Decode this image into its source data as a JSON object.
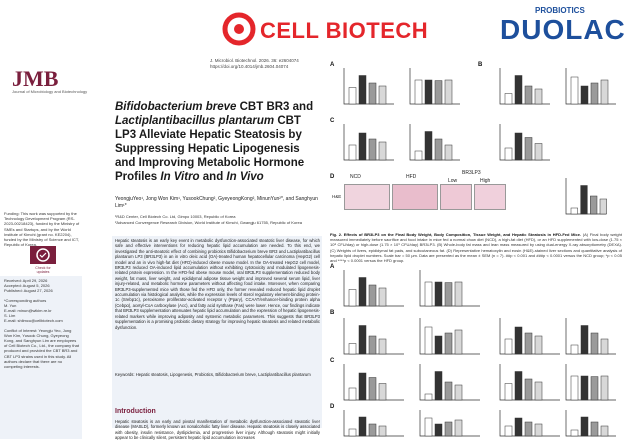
{
  "header": {
    "brand1": "CELL BIOTECH",
    "brand2_super": "PROBIOTICS",
    "brand2": "DUOLAC"
  },
  "journal": {
    "logo": "JMB",
    "logo_sub": "Journal of Microbiology and Biotechnology",
    "citation": "J. Microbiol. Biotechnol. 2026. 36: e2604074",
    "doi": "https://doi.org/10.4014/jmb.2604.04074"
  },
  "article": {
    "title_parts": [
      "Bifidobacterium breve",
      " CBT BR3 and ",
      "Lactiplantibacillus plantarum",
      " CBT LP3 Alleviate Hepatic Steatosis by Suppressing Hepatic Lipogenesis and Improving Metabolic Hormone Profiles ",
      "In Vitro",
      " and ",
      "In Vivo"
    ],
    "authors": "YeongjuYeo¹, Jong Won Kim¹, YusookChung², GyeyeongKong², MinunYun²*, and Sanghyun Lim¹*",
    "affiliation1": "¹R&D Center, Cell Biotech Co. Ltd, Gimpo 10003, Republic of Korea",
    "affiliation2": "²Advanced Convergence Research Division, World Institute of Kimchi, Gwangju 61755, Republic of Korea",
    "abstract": "Hepatic steatosis is an early key event in metabolic dysfunction-associated steatotic liver disease, for which safe and effective interventions for reducing hepatic lipid accumulation are needed. To this end, we investigated the anti-steatotic effect of combining probiotics Bifidobacterium breve BR3 and Lactiplantibacillus plantarum LP3 (BR3LP3) in an in vitro oleic acid (OA)-treated human hepatocellular carcinoma (HepG2) cell model and an in vivo high-fat diet (HFD)-induced obese mouse model. In the OA-treated HepG2 cell model, BR3LP3 reduced OA-induced lipid accumulation without exhibiting cytotoxicity and modulated lipogenesis-related protein expression. In the HFD-fed obese mouse model, oral BR3LP3 supplementation reduced body weight, fat mass, liver weight, and epididymal adipose tissue weight and improved several serum lipid, liver injury-related, and metabolic hormone parameters without affecting food intake. Moreover, when comparing BR3LP3-supplemented mice with those fed the HFD only, the former revealed reduced hepatic lipid droplet accumulation via histological analysis, while the expression levels of sterol regulatory element-binding protein-1c (Srebp1c), peroxisome proliferator-activated receptor γ (Pparγ), CCAAT/enhancer-binding protein alpha (Cebpα), acetyl-CoA carboxylase (Acc), and fatty acid synthase (Fas) were lower. Hence, our findings indicate that BR3LP3 supplementation attenuates hepatic lipid accumulation and the expression of hepatic lipogenesis-related markers while improving adiposity and systemic metabolic parameters. This suggests that BR3LP3 supplementation is a promising probiotic dietary strategy for improving hepatic steatosis and related metabolic dysfunction.",
    "keywords": "Keywords: Hepatic steatosis, Lipogenesis, Probiotics, Bifidobacterium breve, Lactiplantibacillus plantarum",
    "intro_heading": "Introduction",
    "intro_text": "Hepatic steatosis is an early and pivotal manifestation of metabolic dysfunction-associated steatotic liver disease (MASLD), formerly known as nonalcoholic fatty liver disease. Hepatic steatosis is closely associated with obesity, insulin resistance, dyslipidemia, and progressive liver injury. Although steatosis might initially appear to be clinically silent, persistent hepatic lipid accumulation increases"
  },
  "sidebar": {
    "funding": "Funding: This work was supported by the Technology Development Program (RS-2023-00218423), funded by the Ministry of SMEs and Startups, and by the World Institute of Kimchi (grant no. KE2204), funded by the Ministry of Science and ICT, Republic of Korea.",
    "badge_label": "Check for updates",
    "received": "Received: April 29, 2026",
    "accepted": "Accepted: August 5, 2026",
    "published": "Published: August 27, 2026",
    "corr_heading": "*Corresponding authors",
    "corr1": "M. Yun",
    "corr1_email": "E-mail: minun@wikim.re.kr",
    "corr2": "S. Lim",
    "corr2_email": "E-mail: shlimcu@cellbiotech.com",
    "conflict": "Conflict of Interest: Yeongju Yeo, Jong Won Kim, Yusook Chung, Gyeyeong Kong, and Sanghyun Lim are employees of Cell Biotech Co., Ltd., the company that produced and provided the CBT BR3 and CBT LP3 strains used in this study. All authors declare that there are no competing interests."
  },
  "figure": {
    "panels": [
      "A",
      "B",
      "C",
      "D",
      "A",
      "B",
      "C",
      "D"
    ],
    "groups": [
      "NCD",
      "HFD",
      "Low",
      "High"
    ],
    "group_header": "BR3LP3",
    "histo_label": "H&E",
    "caption_title": "Fig. 2. Effects of BR3LP3 on the Final Body Weight, Body Composition, Tissue Weight, and Hepatic Steatosis in HFD-Fed Mice.",
    "caption_body": "(A) Final body weight measured immediately before sacrifice and food intake in mice fed a normal chow diet (NCD), a high-fat diet (HFD), or an HFD supplemented with low-dose (1.75 × 10⁸ CFU/day) or high-dose (1.75 × 10⁹ CFU/day) BR3LP3. (B) Whole-body fat mass and lean mass measured by using dual-energy X-ray absorptiometry (DEXA). (C) Weights of livers, epididymal fat pads, and subcutaneous fat. (D) Representative hematoxylin and eosin (H&E)-stained liver sections and quantitative analysis of hepatic lipid droplet numbers. Scale bar = 50 μm. Data are presented as the mean ± SEM (n = 7). ##p < 0.001 and ###p < 0.0001 versus the NCD group; *p < 0.05 and ****p < 0.0001 versus the HFD group.",
    "colors": {
      "ncd": "#ffffff",
      "hfd": "#333333",
      "low": "#9a9a9a",
      "high": "#d8d8d8",
      "histo": "#e7b8c8"
    }
  }
}
